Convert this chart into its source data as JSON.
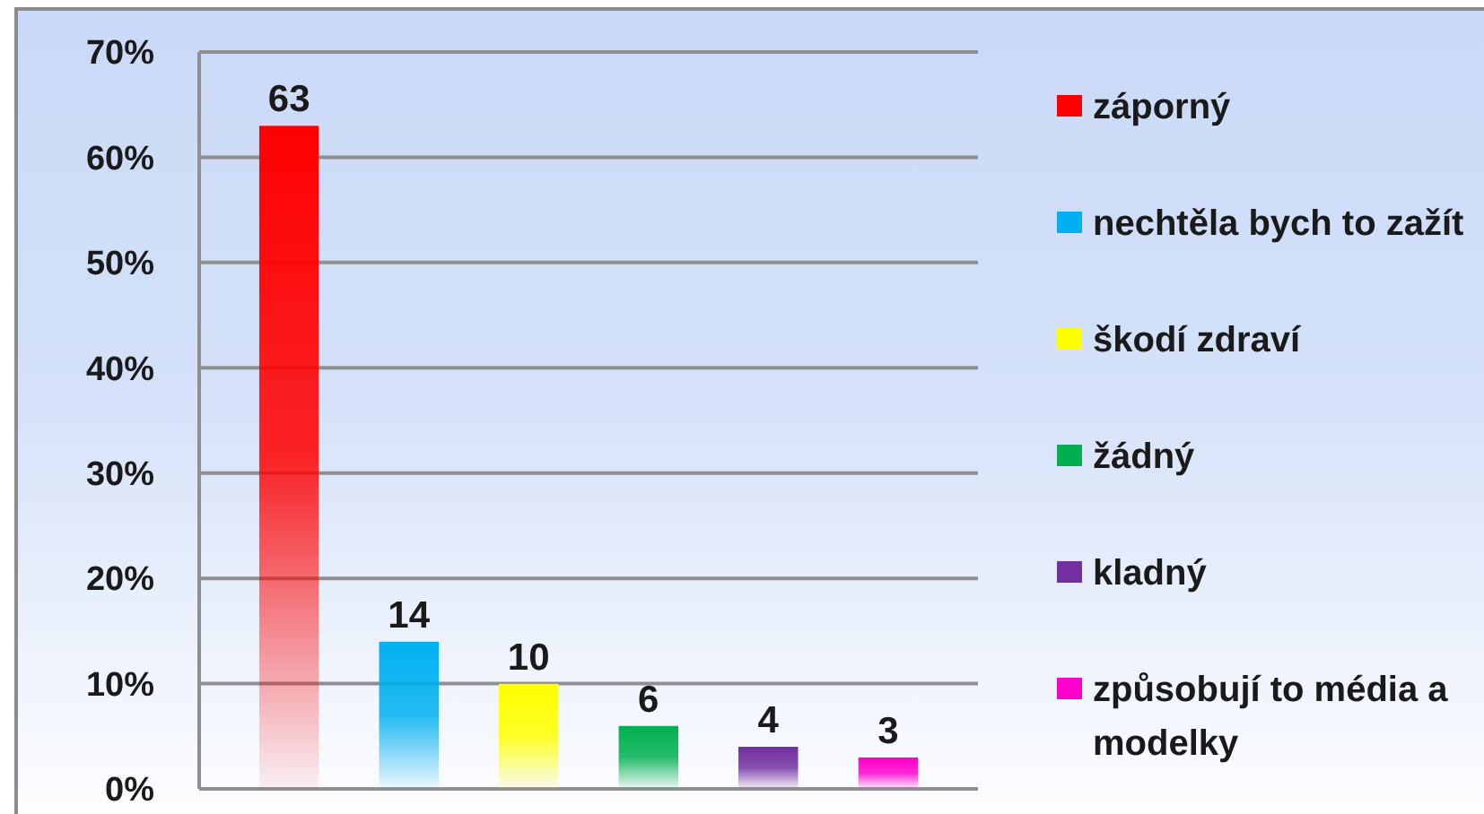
{
  "chart_data": {
    "type": "bar",
    "categories": [
      null
    ],
    "series": [
      {
        "name": "záporný",
        "color": "#ff0000",
        "values": [
          63
        ]
      },
      {
        "name": "nechtěla bych to zažít",
        "color": "#00b0f0",
        "values": [
          14
        ]
      },
      {
        "name": "škodí zdraví",
        "color": "#ffff00",
        "values": [
          10
        ]
      },
      {
        "name": "žádný",
        "color": "#00b050",
        "values": [
          6
        ]
      },
      {
        "name": "kladný",
        "color": "#7030a0",
        "values": [
          4
        ]
      },
      {
        "name": "způsobují to média a modelky",
        "color": "#ff00cc",
        "values": [
          3
        ]
      }
    ],
    "ylim": [
      0,
      70
    ],
    "yticks": [
      {
        "value": 0,
        "label": "0%"
      },
      {
        "value": 10,
        "label": "10%"
      },
      {
        "value": 20,
        "label": "20%"
      },
      {
        "value": 30,
        "label": "30%"
      },
      {
        "value": 40,
        "label": "40%"
      },
      {
        "value": 50,
        "label": "50%"
      },
      {
        "value": 60,
        "label": "60%"
      },
      {
        "value": 70,
        "label": "70%"
      }
    ],
    "grid": "y",
    "legend": "right",
    "tick_labels": "y",
    "data_labels": true
  }
}
